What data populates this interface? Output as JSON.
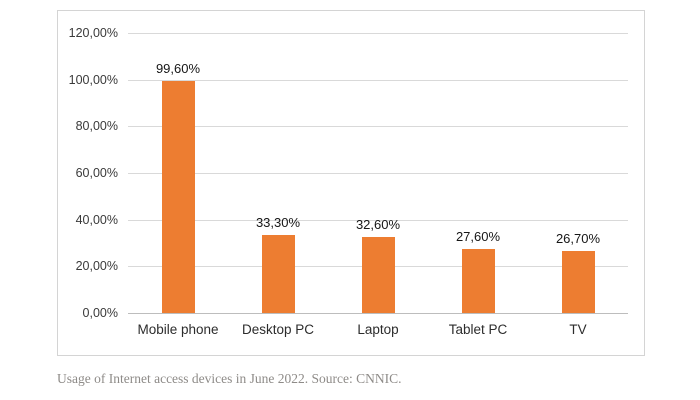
{
  "chart_data": {
    "type": "bar",
    "title": "",
    "xlabel": "",
    "ylabel": "",
    "categories": [
      "Mobile phone",
      "Desktop PC",
      "Laptop",
      "Tablet PC",
      "TV"
    ],
    "values": [
      99.6,
      33.3,
      32.6,
      27.6,
      26.7
    ],
    "value_labels": [
      "99,60%",
      "33,30%",
      "32,60%",
      "27,60%",
      "26,70%"
    ],
    "y_ticks": [
      "120,00%",
      "100,00%",
      "80,00%",
      "60,00%",
      "40,00%",
      "20,00%",
      "0,00%"
    ],
    "ylim": [
      0,
      120
    ],
    "grid": true,
    "legend": "none",
    "bar_color": "#ED7D31",
    "caption": "Usage of Internet access devices in June 2022. Source: CNNIC."
  }
}
